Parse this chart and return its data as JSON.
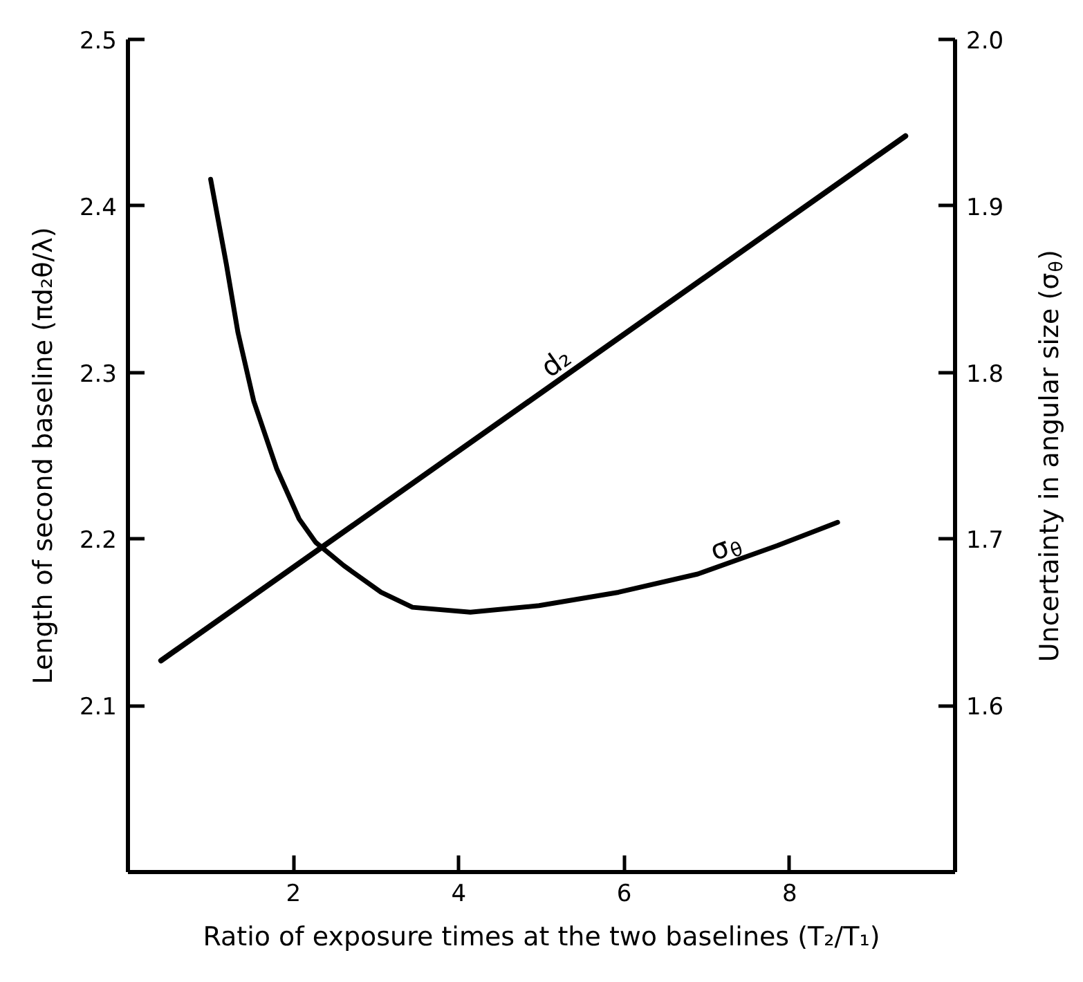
{
  "chart_data": {
    "type": "line",
    "xlabel": "Ratio of exposure times at the two baselines (T₂/T₁)",
    "ylabel": "Length of second baseline (πd₂θ/λ)",
    "y2label": "Uncertainty in angular size (σ$_{θ}$)",
    "xlim": [
      0,
      10
    ],
    "xticks": [
      2,
      4,
      6,
      8
    ],
    "ylim": [
      2.0,
      2.5
    ],
    "yticks": [
      2.1,
      2.2,
      2.3,
      2.4,
      2.5
    ],
    "y2lim": [
      1.5,
      2.0
    ],
    "y2ticks": [
      1.6,
      1.7,
      1.8,
      1.9,
      {
        "value": 2.0,
        "label": "2.0"
      }
    ],
    "grid": false,
    "series": [
      {
        "name": "d₂",
        "color": "#000000",
        "x": [
          0.4,
          9.4
        ],
        "values": [
          2.127,
          2.442
        ]
      },
      {
        "name": "σ$_{θ}$",
        "color": "#000000",
        "axis": "y2",
        "x": [
          1.0,
          1.19,
          1.33,
          1.52,
          1.8,
          2.07,
          2.27,
          2.61,
          3.06,
          3.44,
          4.14,
          4.97,
          5.93,
          6.89,
          7.85,
          8.58
        ],
        "values": [
          1.916,
          1.865,
          1.824,
          1.783,
          1.742,
          1.712,
          1.698,
          1.684,
          1.668,
          1.659,
          1.656,
          1.66,
          1.668,
          1.679,
          1.696,
          1.71
        ]
      }
    ]
  }
}
